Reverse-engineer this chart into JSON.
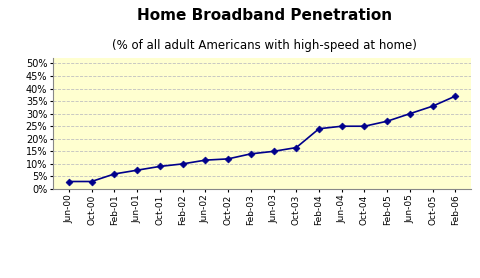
{
  "title": "Home Broadband Penetration",
  "subtitle": "(% of all adult Americans with high-speed at home)",
  "x_labels": [
    "Jun-00",
    "Oct-00",
    "Feb-01",
    "Jun-01",
    "Oct-01",
    "Feb-02",
    "Jun-02",
    "Oct-02",
    "Feb-03",
    "Jun-03",
    "Oct-03",
    "Feb-04",
    "Jun-04",
    "Oct-04",
    "Feb-05",
    "Jun-05",
    "Oct-05",
    "Feb-06"
  ],
  "y_values": [
    0.03,
    0.03,
    0.06,
    0.075,
    0.09,
    0.1,
    0.115,
    0.12,
    0.14,
    0.15,
    0.165,
    0.24,
    0.25,
    0.25,
    0.27,
    0.3,
    0.33,
    0.37
  ],
  "line_color": "#00008B",
  "marker_color": "#00008B",
  "plot_bg_color": "#FFFFD0",
  "fig_bg_color": "#FFFFFF",
  "grid_color": "#C0C0C0",
  "yticks": [
    0.0,
    0.05,
    0.1,
    0.15,
    0.2,
    0.25,
    0.3,
    0.35,
    0.4,
    0.45,
    0.5
  ],
  "ylim": [
    0,
    0.52
  ],
  "title_fontsize": 11,
  "subtitle_fontsize": 8.5
}
